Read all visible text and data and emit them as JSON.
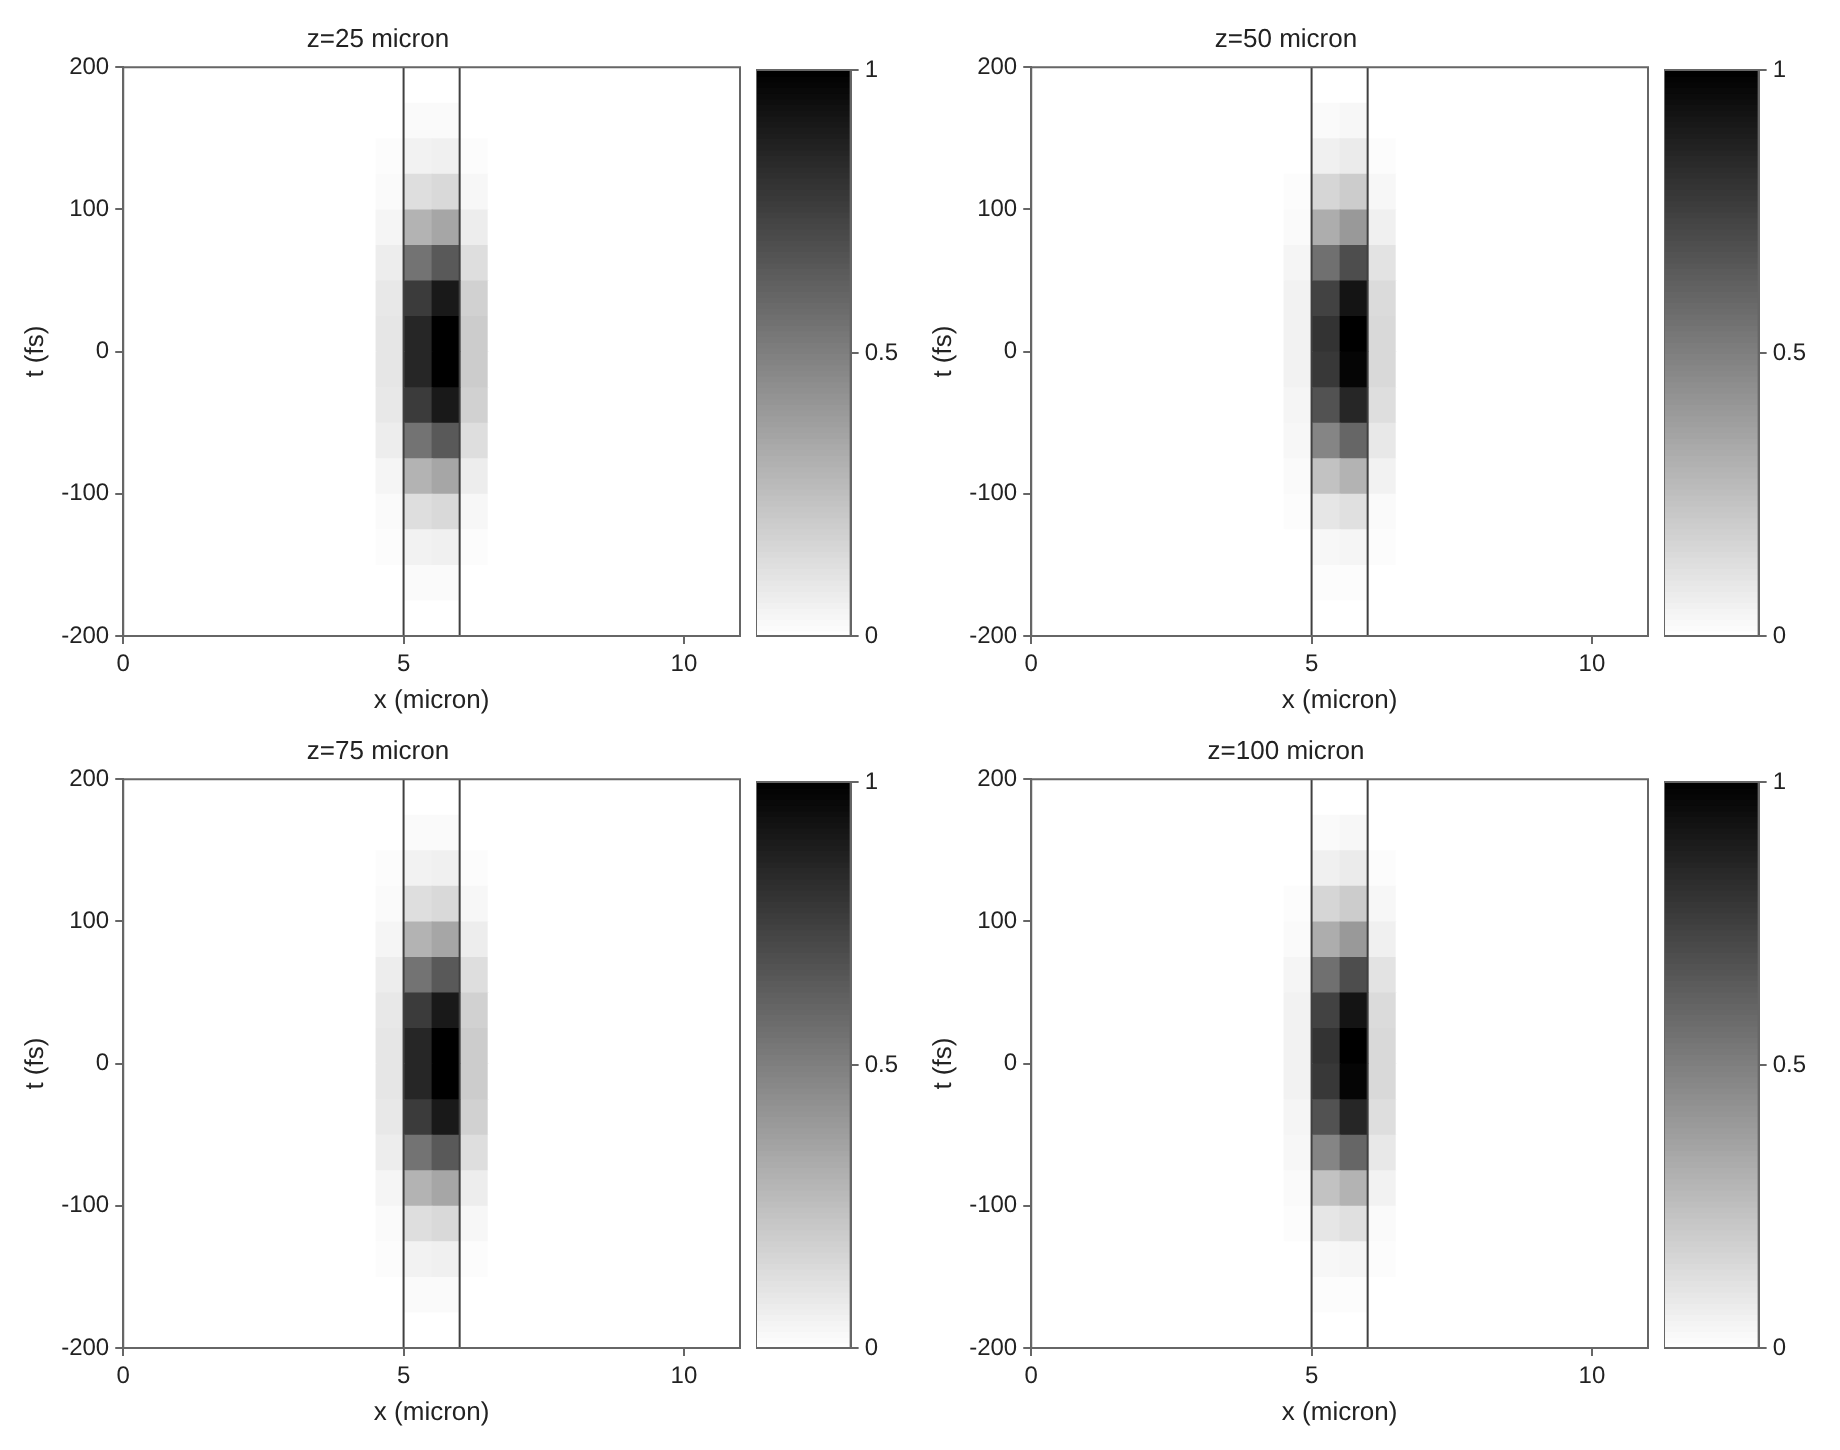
{
  "chart_data": [
    {
      "type": "heatmap",
      "title": "z=25 micron",
      "xlabel": "x (micron)",
      "ylabel": "t (fs)",
      "xlim": [
        0,
        11
      ],
      "xticks": [
        0,
        5,
        10
      ],
      "ylim": [
        -200,
        200
      ],
      "yticks": [
        -200,
        -100,
        0,
        100,
        200
      ],
      "clim": [
        0,
        1
      ],
      "cticks": [
        0,
        0.5,
        1
      ],
      "grid": false,
      "ref_lines": [
        {
          "axis": "x",
          "value": 5,
          "color": "#404040"
        },
        {
          "axis": "x",
          "value": 6,
          "color": "#404040"
        }
      ],
      "cells": [
        [
          0,
          0,
          0,
          0,
          0,
          0,
          0,
          0,
          0,
          0,
          0,
          0,
          0,
          0,
          0,
          0,
          0,
          0,
          0,
          0,
          0,
          0
        ],
        [
          0,
          0,
          0,
          0,
          0,
          0,
          0,
          0,
          0,
          0,
          0.02,
          0.02,
          0,
          0,
          0,
          0,
          0,
          0,
          0,
          0,
          0,
          0
        ],
        [
          0,
          0,
          0,
          0,
          0,
          0,
          0,
          0,
          0,
          0.01,
          0.05,
          0.06,
          0.01,
          0,
          0,
          0,
          0,
          0,
          0,
          0,
          0,
          0
        ],
        [
          0,
          0,
          0,
          0,
          0,
          0,
          0,
          0,
          0,
          0.02,
          0.13,
          0.15,
          0.03,
          0,
          0,
          0,
          0,
          0,
          0,
          0,
          0,
          0
        ],
        [
          0,
          0,
          0,
          0,
          0,
          0,
          0,
          0,
          0,
          0.04,
          0.3,
          0.35,
          0.07,
          0,
          0,
          0,
          0,
          0,
          0,
          0,
          0,
          0
        ],
        [
          0,
          0,
          0,
          0,
          0,
          0,
          0,
          0,
          0,
          0.07,
          0.55,
          0.65,
          0.13,
          0,
          0,
          0,
          0,
          0,
          0,
          0,
          0,
          0
        ],
        [
          0,
          0,
          0,
          0,
          0,
          0,
          0,
          0,
          0,
          0.09,
          0.77,
          0.9,
          0.18,
          0,
          0,
          0,
          0,
          0,
          0,
          0,
          0,
          0
        ],
        [
          0,
          0,
          0,
          0,
          0,
          0,
          0,
          0,
          0,
          0.1,
          0.85,
          1,
          0.2,
          0,
          0,
          0,
          0,
          0,
          0,
          0,
          0,
          0
        ],
        [
          0,
          0,
          0,
          0,
          0,
          0,
          0,
          0,
          0,
          0.1,
          0.85,
          1,
          0.2,
          0,
          0,
          0,
          0,
          0,
          0,
          0,
          0,
          0
        ],
        [
          0,
          0,
          0,
          0,
          0,
          0,
          0,
          0,
          0,
          0.09,
          0.77,
          0.9,
          0.18,
          0,
          0,
          0,
          0,
          0,
          0,
          0,
          0,
          0
        ],
        [
          0,
          0,
          0,
          0,
          0,
          0,
          0,
          0,
          0,
          0.07,
          0.55,
          0.65,
          0.13,
          0,
          0,
          0,
          0,
          0,
          0,
          0,
          0,
          0
        ],
        [
          0,
          0,
          0,
          0,
          0,
          0,
          0,
          0,
          0,
          0.04,
          0.3,
          0.35,
          0.07,
          0,
          0,
          0,
          0,
          0,
          0,
          0,
          0,
          0
        ],
        [
          0,
          0,
          0,
          0,
          0,
          0,
          0,
          0,
          0,
          0.02,
          0.13,
          0.15,
          0.03,
          0,
          0,
          0,
          0,
          0,
          0,
          0,
          0,
          0
        ],
        [
          0,
          0,
          0,
          0,
          0,
          0,
          0,
          0,
          0,
          0.01,
          0.05,
          0.06,
          0.01,
          0,
          0,
          0,
          0,
          0,
          0,
          0,
          0,
          0
        ],
        [
          0,
          0,
          0,
          0,
          0,
          0,
          0,
          0,
          0,
          0,
          0.02,
          0.02,
          0,
          0,
          0,
          0,
          0,
          0,
          0,
          0,
          0,
          0
        ],
        [
          0,
          0,
          0,
          0,
          0,
          0,
          0,
          0,
          0,
          0,
          0,
          0,
          0,
          0,
          0,
          0,
          0,
          0,
          0,
          0,
          0,
          0
        ]
      ]
    },
    {
      "type": "heatmap",
      "title": "z=50 micron",
      "xlabel": "x (micron)",
      "ylabel": "t (fs)",
      "xlim": [
        0,
        11
      ],
      "xticks": [
        0,
        5,
        10
      ],
      "ylim": [
        -200,
        200
      ],
      "yticks": [
        -200,
        -100,
        0,
        100,
        200
      ],
      "clim": [
        0,
        1
      ],
      "cticks": [
        0,
        0.5,
        1
      ],
      "grid": false,
      "ref_lines": [
        {
          "axis": "x",
          "value": 5,
          "color": "#404040"
        },
        {
          "axis": "x",
          "value": 6,
          "color": "#404040"
        }
      ],
      "cells": [
        [
          0,
          0,
          0,
          0,
          0,
          0,
          0,
          0,
          0,
          0,
          0,
          0,
          0,
          0,
          0,
          0,
          0,
          0,
          0,
          0,
          0,
          0
        ],
        [
          0,
          0,
          0,
          0,
          0,
          0,
          0,
          0,
          0,
          0,
          0.02,
          0.03,
          0,
          0,
          0,
          0,
          0,
          0,
          0,
          0,
          0,
          0
        ],
        [
          0,
          0,
          0,
          0,
          0,
          0,
          0,
          0,
          0,
          0,
          0.06,
          0.08,
          0.01,
          0,
          0,
          0,
          0,
          0,
          0,
          0,
          0,
          0
        ],
        [
          0,
          0,
          0,
          0,
          0,
          0,
          0,
          0,
          0,
          0.01,
          0.16,
          0.2,
          0.03,
          0,
          0,
          0,
          0,
          0,
          0,
          0,
          0,
          0
        ],
        [
          0,
          0,
          0,
          0,
          0,
          0,
          0,
          0,
          0,
          0.02,
          0.32,
          0.4,
          0.06,
          0,
          0,
          0,
          0,
          0,
          0,
          0,
          0,
          0
        ],
        [
          0,
          0,
          0,
          0,
          0,
          0,
          0,
          0,
          0,
          0.04,
          0.56,
          0.7,
          0.11,
          0,
          0,
          0,
          0,
          0,
          0,
          0,
          0,
          0
        ],
        [
          0,
          0,
          0,
          0,
          0,
          0,
          0,
          0,
          0,
          0.05,
          0.74,
          0.92,
          0.14,
          0,
          0,
          0,
          0,
          0,
          0,
          0,
          0,
          0
        ],
        [
          0,
          0,
          0,
          0,
          0,
          0,
          0,
          0,
          0,
          0.05,
          0.8,
          1,
          0.15,
          0,
          0,
          0,
          0,
          0,
          0,
          0,
          0,
          0
        ],
        [
          0,
          0,
          0,
          0,
          0,
          0,
          0,
          0,
          0,
          0.05,
          0.78,
          0.98,
          0.15,
          0,
          0,
          0,
          0,
          0,
          0,
          0,
          0,
          0
        ],
        [
          0,
          0,
          0,
          0,
          0,
          0,
          0,
          0,
          0,
          0.04,
          0.68,
          0.85,
          0.13,
          0,
          0,
          0,
          0,
          0,
          0,
          0,
          0,
          0
        ],
        [
          0,
          0,
          0,
          0,
          0,
          0,
          0,
          0,
          0,
          0.03,
          0.48,
          0.6,
          0.09,
          0,
          0,
          0,
          0,
          0,
          0,
          0,
          0,
          0
        ],
        [
          0,
          0,
          0,
          0,
          0,
          0,
          0,
          0,
          0,
          0.02,
          0.24,
          0.3,
          0.05,
          0,
          0,
          0,
          0,
          0,
          0,
          0,
          0,
          0
        ],
        [
          0,
          0,
          0,
          0,
          0,
          0,
          0,
          0,
          0,
          0.01,
          0.1,
          0.12,
          0.02,
          0,
          0,
          0,
          0,
          0,
          0,
          0,
          0,
          0
        ],
        [
          0,
          0,
          0,
          0,
          0,
          0,
          0,
          0,
          0,
          0,
          0.03,
          0.04,
          0.01,
          0,
          0,
          0,
          0,
          0,
          0,
          0,
          0,
          0
        ],
        [
          0,
          0,
          0,
          0,
          0,
          0,
          0,
          0,
          0,
          0,
          0.01,
          0.01,
          0,
          0,
          0,
          0,
          0,
          0,
          0,
          0,
          0,
          0
        ],
        [
          0,
          0,
          0,
          0,
          0,
          0,
          0,
          0,
          0,
          0,
          0,
          0,
          0,
          0,
          0,
          0,
          0,
          0,
          0,
          0,
          0,
          0
        ]
      ]
    },
    {
      "type": "heatmap",
      "title": "z=75 micron",
      "xlabel": "x (micron)",
      "ylabel": "t (fs)",
      "xlim": [
        0,
        11
      ],
      "xticks": [
        0,
        5,
        10
      ],
      "ylim": [
        -200,
        200
      ],
      "yticks": [
        -200,
        -100,
        0,
        100,
        200
      ],
      "clim": [
        0,
        1
      ],
      "cticks": [
        0,
        0.5,
        1
      ],
      "grid": false,
      "ref_lines": [
        {
          "axis": "x",
          "value": 5,
          "color": "#404040"
        },
        {
          "axis": "x",
          "value": 6,
          "color": "#404040"
        }
      ],
      "cells": [
        [
          0,
          0,
          0,
          0,
          0,
          0,
          0,
          0,
          0,
          0,
          0,
          0,
          0,
          0,
          0,
          0,
          0,
          0,
          0,
          0,
          0,
          0
        ],
        [
          0,
          0,
          0,
          0,
          0,
          0,
          0,
          0,
          0,
          0,
          0.02,
          0.02,
          0,
          0,
          0,
          0,
          0,
          0,
          0,
          0,
          0,
          0
        ],
        [
          0,
          0,
          0,
          0,
          0,
          0,
          0,
          0,
          0,
          0.01,
          0.05,
          0.06,
          0.01,
          0,
          0,
          0,
          0,
          0,
          0,
          0,
          0,
          0
        ],
        [
          0,
          0,
          0,
          0,
          0,
          0,
          0,
          0,
          0,
          0.02,
          0.13,
          0.15,
          0.03,
          0,
          0,
          0,
          0,
          0,
          0,
          0,
          0,
          0
        ],
        [
          0,
          0,
          0,
          0,
          0,
          0,
          0,
          0,
          0,
          0.04,
          0.3,
          0.35,
          0.07,
          0,
          0,
          0,
          0,
          0,
          0,
          0,
          0,
          0
        ],
        [
          0,
          0,
          0,
          0,
          0,
          0,
          0,
          0,
          0,
          0.07,
          0.55,
          0.65,
          0.13,
          0,
          0,
          0,
          0,
          0,
          0,
          0,
          0,
          0
        ],
        [
          0,
          0,
          0,
          0,
          0,
          0,
          0,
          0,
          0,
          0.09,
          0.77,
          0.9,
          0.18,
          0,
          0,
          0,
          0,
          0,
          0,
          0,
          0,
          0
        ],
        [
          0,
          0,
          0,
          0,
          0,
          0,
          0,
          0,
          0,
          0.1,
          0.85,
          1,
          0.2,
          0,
          0,
          0,
          0,
          0,
          0,
          0,
          0,
          0
        ],
        [
          0,
          0,
          0,
          0,
          0,
          0,
          0,
          0,
          0,
          0.1,
          0.85,
          1,
          0.2,
          0,
          0,
          0,
          0,
          0,
          0,
          0,
          0,
          0
        ],
        [
          0,
          0,
          0,
          0,
          0,
          0,
          0,
          0,
          0,
          0.09,
          0.77,
          0.9,
          0.18,
          0,
          0,
          0,
          0,
          0,
          0,
          0,
          0,
          0
        ],
        [
          0,
          0,
          0,
          0,
          0,
          0,
          0,
          0,
          0,
          0.07,
          0.55,
          0.65,
          0.13,
          0,
          0,
          0,
          0,
          0,
          0,
          0,
          0,
          0
        ],
        [
          0,
          0,
          0,
          0,
          0,
          0,
          0,
          0,
          0,
          0.04,
          0.3,
          0.35,
          0.07,
          0,
          0,
          0,
          0,
          0,
          0,
          0,
          0,
          0
        ],
        [
          0,
          0,
          0,
          0,
          0,
          0,
          0,
          0,
          0,
          0.02,
          0.13,
          0.15,
          0.03,
          0,
          0,
          0,
          0,
          0,
          0,
          0,
          0,
          0
        ],
        [
          0,
          0,
          0,
          0,
          0,
          0,
          0,
          0,
          0,
          0.01,
          0.05,
          0.06,
          0.01,
          0,
          0,
          0,
          0,
          0,
          0,
          0,
          0,
          0
        ],
        [
          0,
          0,
          0,
          0,
          0,
          0,
          0,
          0,
          0,
          0,
          0.02,
          0.02,
          0,
          0,
          0,
          0,
          0,
          0,
          0,
          0,
          0,
          0
        ],
        [
          0,
          0,
          0,
          0,
          0,
          0,
          0,
          0,
          0,
          0,
          0,
          0,
          0,
          0,
          0,
          0,
          0,
          0,
          0,
          0,
          0,
          0
        ]
      ]
    },
    {
      "type": "heatmap",
      "title": "z=100 micron",
      "xlabel": "x (micron)",
      "ylabel": "t (fs)",
      "xlim": [
        0,
        11
      ],
      "xticks": [
        0,
        5,
        10
      ],
      "ylim": [
        -200,
        200
      ],
      "yticks": [
        -200,
        -100,
        0,
        100,
        200
      ],
      "clim": [
        0,
        1
      ],
      "cticks": [
        0,
        0.5,
        1
      ],
      "grid": false,
      "ref_lines": [
        {
          "axis": "x",
          "value": 5,
          "color": "#404040"
        },
        {
          "axis": "x",
          "value": 6,
          "color": "#404040"
        }
      ],
      "cells": [
        [
          0,
          0,
          0,
          0,
          0,
          0,
          0,
          0,
          0,
          0,
          0,
          0,
          0,
          0,
          0,
          0,
          0,
          0,
          0,
          0,
          0,
          0
        ],
        [
          0,
          0,
          0,
          0,
          0,
          0,
          0,
          0,
          0,
          0,
          0.02,
          0.03,
          0,
          0,
          0,
          0,
          0,
          0,
          0,
          0,
          0,
          0
        ],
        [
          0,
          0,
          0,
          0,
          0,
          0,
          0,
          0,
          0,
          0,
          0.06,
          0.08,
          0.01,
          0,
          0,
          0,
          0,
          0,
          0,
          0,
          0,
          0
        ],
        [
          0,
          0,
          0,
          0,
          0,
          0,
          0,
          0,
          0,
          0.01,
          0.16,
          0.2,
          0.03,
          0,
          0,
          0,
          0,
          0,
          0,
          0,
          0,
          0
        ],
        [
          0,
          0,
          0,
          0,
          0,
          0,
          0,
          0,
          0,
          0.02,
          0.32,
          0.4,
          0.06,
          0,
          0,
          0,
          0,
          0,
          0,
          0,
          0,
          0
        ],
        [
          0,
          0,
          0,
          0,
          0,
          0,
          0,
          0,
          0,
          0.04,
          0.56,
          0.7,
          0.11,
          0,
          0,
          0,
          0,
          0,
          0,
          0,
          0,
          0
        ],
        [
          0,
          0,
          0,
          0,
          0,
          0,
          0,
          0,
          0,
          0.05,
          0.74,
          0.92,
          0.14,
          0,
          0,
          0,
          0,
          0,
          0,
          0,
          0,
          0
        ],
        [
          0,
          0,
          0,
          0,
          0,
          0,
          0,
          0,
          0,
          0.05,
          0.8,
          1,
          0.15,
          0,
          0,
          0,
          0,
          0,
          0,
          0,
          0,
          0
        ],
        [
          0,
          0,
          0,
          0,
          0,
          0,
          0,
          0,
          0,
          0.05,
          0.78,
          0.98,
          0.15,
          0,
          0,
          0,
          0,
          0,
          0,
          0,
          0,
          0
        ],
        [
          0,
          0,
          0,
          0,
          0,
          0,
          0,
          0,
          0,
          0.04,
          0.68,
          0.85,
          0.13,
          0,
          0,
          0,
          0,
          0,
          0,
          0,
          0,
          0
        ],
        [
          0,
          0,
          0,
          0,
          0,
          0,
          0,
          0,
          0,
          0.03,
          0.48,
          0.6,
          0.09,
          0,
          0,
          0,
          0,
          0,
          0,
          0,
          0,
          0
        ],
        [
          0,
          0,
          0,
          0,
          0,
          0,
          0,
          0,
          0,
          0.02,
          0.24,
          0.3,
          0.05,
          0,
          0,
          0,
          0,
          0,
          0,
          0,
          0,
          0
        ],
        [
          0,
          0,
          0,
          0,
          0,
          0,
          0,
          0,
          0,
          0.01,
          0.1,
          0.12,
          0.02,
          0,
          0,
          0,
          0,
          0,
          0,
          0,
          0,
          0
        ],
        [
          0,
          0,
          0,
          0,
          0,
          0,
          0,
          0,
          0,
          0,
          0.03,
          0.04,
          0.01,
          0,
          0,
          0,
          0,
          0,
          0,
          0,
          0,
          0
        ],
        [
          0,
          0,
          0,
          0,
          0,
          0,
          0,
          0,
          0,
          0,
          0.01,
          0.01,
          0,
          0,
          0,
          0,
          0,
          0,
          0,
          0,
          0,
          0
        ],
        [
          0,
          0,
          0,
          0,
          0,
          0,
          0,
          0,
          0,
          0,
          0,
          0,
          0,
          0,
          0,
          0,
          0,
          0,
          0,
          0,
          0,
          0
        ]
      ]
    }
  ]
}
